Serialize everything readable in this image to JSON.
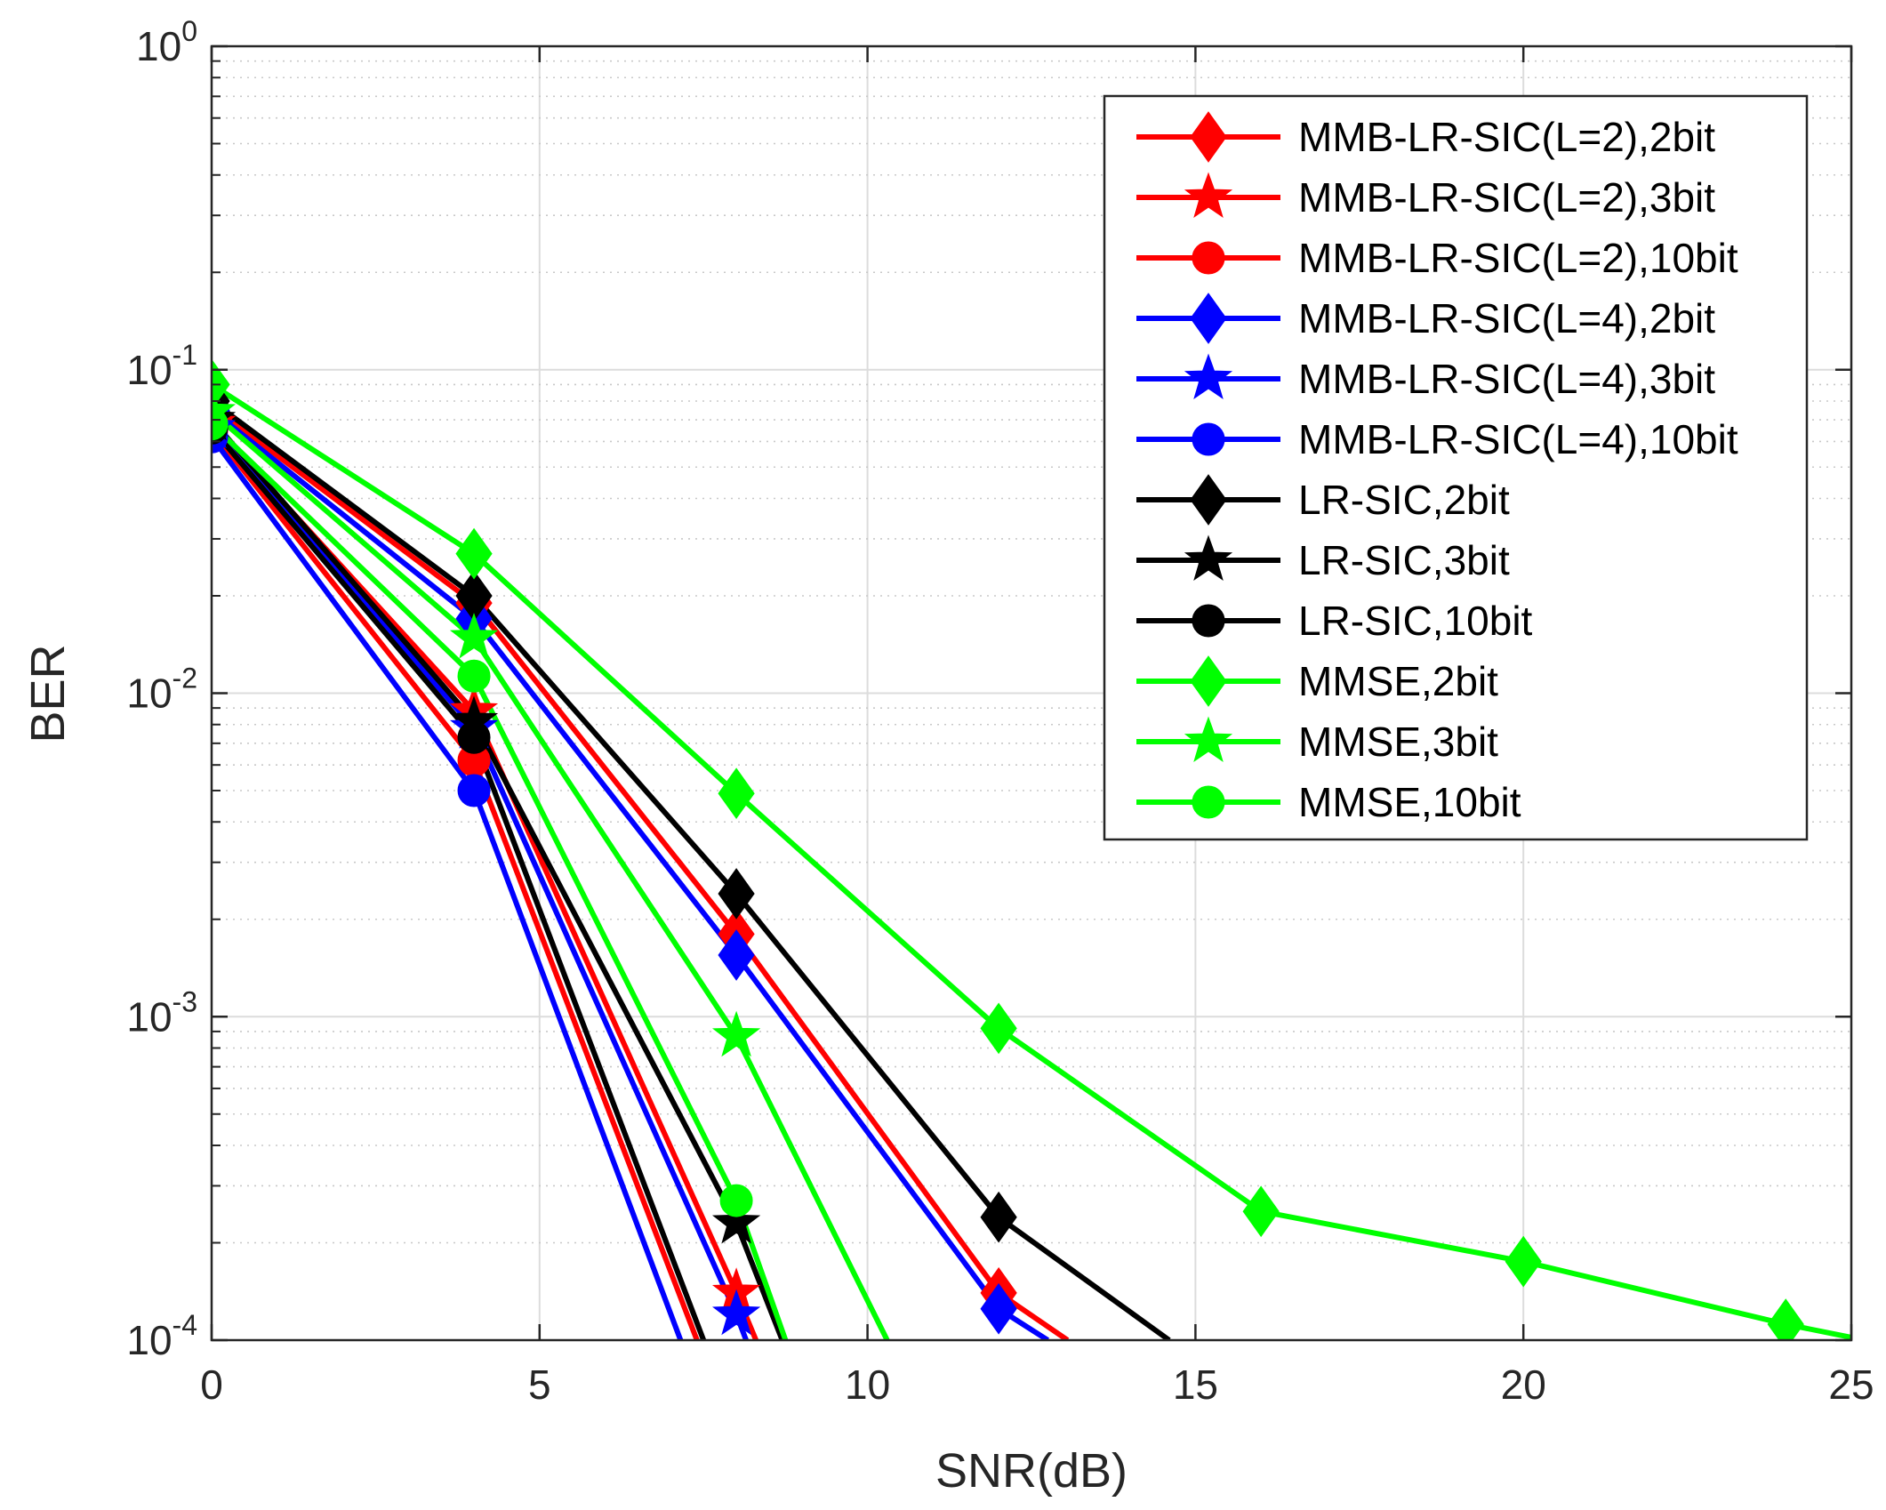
{
  "chart_data": {
    "type": "line",
    "title": "",
    "xlabel": "SNR(dB)",
    "ylabel": "BER",
    "xscale": "linear",
    "yscale": "log",
    "xlim": [
      0,
      25
    ],
    "ylim": [
      0.0001,
      1
    ],
    "grid": true,
    "legend_position": "top-right",
    "x_ticks": [
      {
        "value": 0,
        "label": "0"
      },
      {
        "value": 5,
        "label": "5"
      },
      {
        "value": 10,
        "label": "10"
      },
      {
        "value": 15,
        "label": "15"
      },
      {
        "value": 20,
        "label": "20"
      },
      {
        "value": 25,
        "label": "25"
      }
    ],
    "y_ticks": [
      {
        "value": 0.0001,
        "base": "10",
        "exp": "-4"
      },
      {
        "value": 0.001,
        "base": "10",
        "exp": "-3"
      },
      {
        "value": 0.01,
        "base": "10",
        "exp": "-2"
      },
      {
        "value": 0.1,
        "base": "10",
        "exp": "-1"
      },
      {
        "value": 1,
        "base": "10",
        "exp": "0"
      }
    ],
    "series": [
      {
        "name": "MMB-LR-SIC(L=2),2bit",
        "color": "#ff0000",
        "marker": "diamond",
        "x": [
          0,
          4,
          8,
          12,
          13.05
        ],
        "y": [
          0.077,
          0.019,
          0.0018,
          0.00014,
          0.0001
        ]
      },
      {
        "name": "MMB-LR-SIC(L=2),3bit",
        "color": "#ff0000",
        "marker": "star",
        "x": [
          0,
          4,
          8,
          8.3
        ],
        "y": [
          0.068,
          0.0088,
          0.00014,
          0.0001
        ]
      },
      {
        "name": "MMB-LR-SIC(L=2),10bit",
        "color": "#ff0000",
        "marker": "circle",
        "x": [
          0,
          4,
          7.4
        ],
        "y": [
          0.065,
          0.0062,
          0.0001
        ]
      },
      {
        "name": "MMB-LR-SIC(L=4),2bit",
        "color": "#0000ff",
        "marker": "diamond",
        "x": [
          0,
          4,
          8,
          12,
          12.75
        ],
        "y": [
          0.075,
          0.017,
          0.00155,
          0.000125,
          0.0001
        ]
      },
      {
        "name": "MMB-LR-SIC(L=4),3bit",
        "color": "#0000ff",
        "marker": "star",
        "x": [
          0,
          4,
          8,
          8.15
        ],
        "y": [
          0.066,
          0.0078,
          0.00012,
          0.0001
        ]
      },
      {
        "name": "MMB-LR-SIC(L=4),10bit",
        "color": "#0000ff",
        "marker": "circle",
        "x": [
          0,
          4,
          7.15
        ],
        "y": [
          0.062,
          0.005,
          0.0001
        ]
      },
      {
        "name": "LR-SIC,2bit",
        "color": "#000000",
        "marker": "diamond",
        "x": [
          0,
          4,
          8,
          12,
          14.6
        ],
        "y": [
          0.08,
          0.02,
          0.0024,
          0.00024,
          0.0001
        ]
      },
      {
        "name": "LR-SIC,3bit",
        "color": "#000000",
        "marker": "star",
        "x": [
          0,
          4,
          8,
          8.7
        ],
        "y": [
          0.07,
          0.0082,
          0.00023,
          0.0001
        ]
      },
      {
        "name": "LR-SIC,10bit",
        "color": "#000000",
        "marker": "circle",
        "x": [
          0,
          4,
          7.5
        ],
        "y": [
          0.066,
          0.0073,
          0.0001
        ]
      },
      {
        "name": "MMSE,2bit",
        "color": "#00ff00",
        "marker": "diamond",
        "x": [
          0,
          4,
          8,
          12,
          16,
          20,
          24,
          25
        ],
        "y": [
          0.09,
          0.027,
          0.0049,
          0.00092,
          0.00025,
          0.000175,
          0.000112,
          0.000102
        ]
      },
      {
        "name": "MMSE,3bit",
        "color": "#00ff00",
        "marker": "star",
        "x": [
          0,
          4,
          8,
          10.3
        ],
        "y": [
          0.074,
          0.0148,
          0.00087,
          0.0001
        ]
      },
      {
        "name": "MMSE,10bit",
        "color": "#00ff00",
        "marker": "circle",
        "x": [
          0,
          4,
          8,
          8.75
        ],
        "y": [
          0.068,
          0.0113,
          0.00027,
          0.0001
        ]
      }
    ]
  }
}
